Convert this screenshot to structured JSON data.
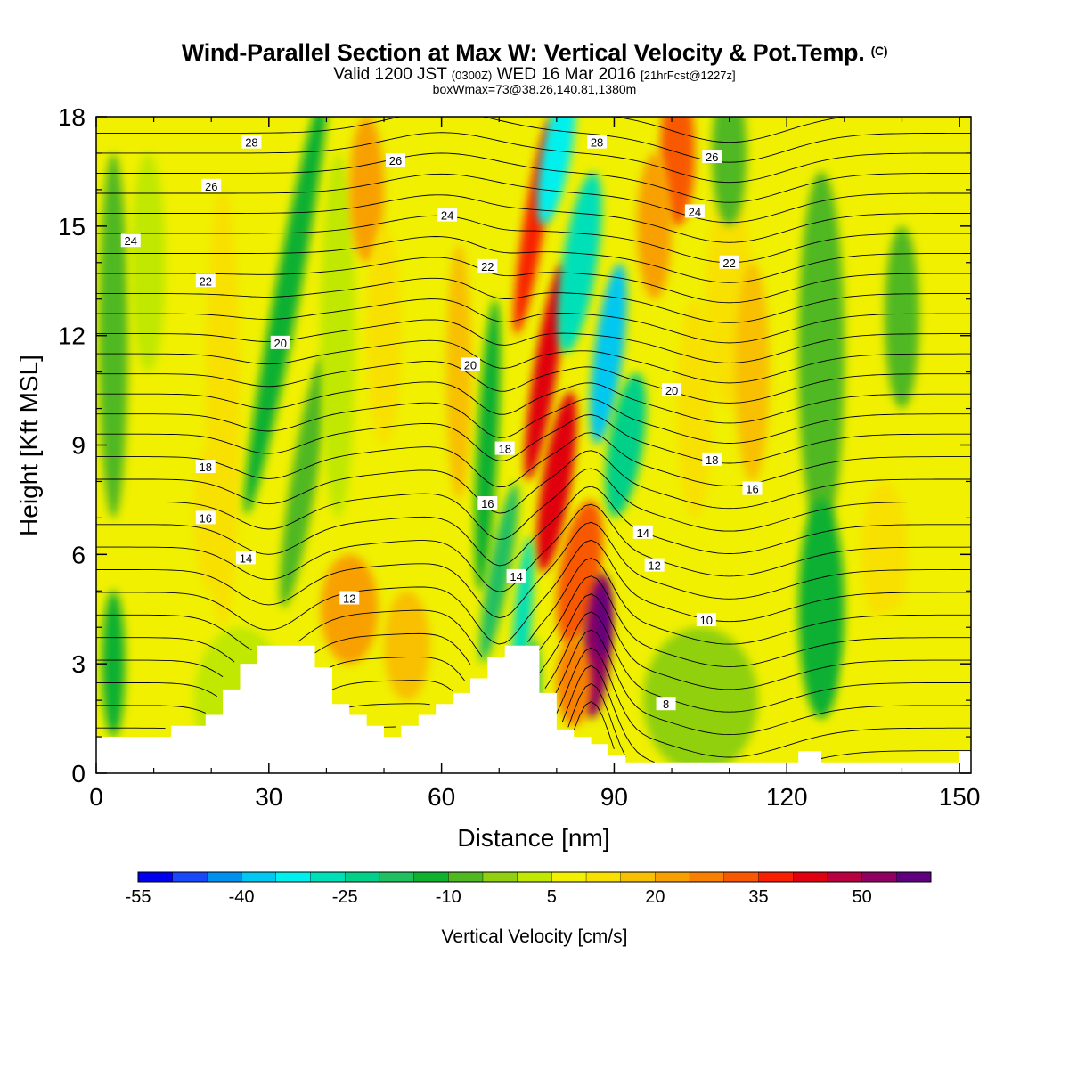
{
  "header": {
    "title_main": "Wind-Parallel Section at Max W: Vertical Velocity & Pot.Temp.",
    "title_mark": "(C)",
    "valid_a": "Valid 1200 JST",
    "valid_b": "(0300Z)",
    "valid_c": "WED 16 Mar 2016",
    "valid_d": "[21hrFcst@1227z]",
    "box_line": "boxWmax=73@38.26,140.81,1380m"
  },
  "chart_data": {
    "type": "heatmap",
    "xlabel": "Distance [nm]",
    "ylabel": "Height [Kft MSL]",
    "xlim": [
      0,
      152
    ],
    "ylim": [
      0,
      18
    ],
    "x_ticks": [
      0,
      30,
      60,
      90,
      120,
      150
    ],
    "y_ticks": [
      0,
      3,
      6,
      9,
      12,
      15,
      18
    ],
    "colorbar": {
      "title": "Vertical Velocity [cm/s]",
      "labels": [
        -55,
        -40,
        -25,
        -10,
        5,
        20,
        35,
        50
      ],
      "colors": [
        "#0000ee",
        "#1848f8",
        "#0090ee",
        "#00c8f0",
        "#00f0ee",
        "#00e0b8",
        "#00d088",
        "#20c060",
        "#10b030",
        "#50b820",
        "#90d010",
        "#c0e800",
        "#f0f000",
        "#f8e000",
        "#f8c000",
        "#f8a000",
        "#f88000",
        "#f85800",
        "#f82000",
        "#e00010",
        "#b80040",
        "#900060",
        "#600080"
      ]
    },
    "field": {
      "variable": "Vertical Velocity [cm/s]",
      "max": 73,
      "features": [
        {
          "name": "strong updraft",
          "value": 50,
          "x": [
            88,
            89
          ],
          "y": [
            2.5,
            5
          ]
        },
        {
          "name": "updraft tongue",
          "value": 35,
          "x": [
            75,
            88
          ],
          "y": [
            1,
            18
          ]
        },
        {
          "name": "downdraft",
          "value": -40,
          "x": [
            78,
            92
          ],
          "y": [
            2,
            18
          ]
        },
        {
          "name": "downdraft",
          "value": -20,
          "x": [
            62,
            73
          ],
          "y": [
            1.5,
            10
          ]
        },
        {
          "name": "downdraft",
          "value": -15,
          "x": [
            30,
            40
          ],
          "y": [
            3,
            18
          ]
        },
        {
          "name": "updraft",
          "value": 20,
          "x": [
            38,
            58
          ],
          "y": [
            1,
            6
          ]
        },
        {
          "name": "downdraft",
          "value": -15,
          "x": [
            118,
            135
          ],
          "y": [
            2,
            15
          ]
        }
      ]
    },
    "isentropes": [
      {
        "theta": 8,
        "label_at": [
          99,
          1.9
        ]
      },
      {
        "theta": 10,
        "label_at": [
          106,
          4.2
        ]
      },
      {
        "theta": 12,
        "label_at": [
          44,
          4.8
        ]
      },
      {
        "theta": 12,
        "label_at": [
          97,
          5.7
        ]
      },
      {
        "theta": 14,
        "label_at": [
          26,
          5.9
        ]
      },
      {
        "theta": 14,
        "label_at": [
          73,
          5.4
        ]
      },
      {
        "theta": 14,
        "label_at": [
          95,
          6.6
        ]
      },
      {
        "theta": 16,
        "label_at": [
          19,
          7.0
        ]
      },
      {
        "theta": 16,
        "label_at": [
          68,
          7.4
        ]
      },
      {
        "theta": 16,
        "label_at": [
          114,
          7.8
        ]
      },
      {
        "theta": 18,
        "label_at": [
          19,
          8.4
        ]
      },
      {
        "theta": 18,
        "label_at": [
          71,
          8.9
        ]
      },
      {
        "theta": 18,
        "label_at": [
          107,
          8.6
        ]
      },
      {
        "theta": 20,
        "label_at": [
          32,
          11.8
        ]
      },
      {
        "theta": 20,
        "label_at": [
          65,
          11.2
        ]
      },
      {
        "theta": 20,
        "label_at": [
          100,
          10.5
        ]
      },
      {
        "theta": 22,
        "label_at": [
          19,
          13.5
        ]
      },
      {
        "theta": 22,
        "label_at": [
          68,
          13.9
        ]
      },
      {
        "theta": 22,
        "label_at": [
          110,
          14.0
        ]
      },
      {
        "theta": 24,
        "label_at": [
          6,
          14.6
        ]
      },
      {
        "theta": 24,
        "label_at": [
          61,
          15.3
        ]
      },
      {
        "theta": 24,
        "label_at": [
          104,
          15.4
        ]
      },
      {
        "theta": 26,
        "label_at": [
          20,
          16.1
        ]
      },
      {
        "theta": 26,
        "label_at": [
          52,
          16.8
        ]
      },
      {
        "theta": 26,
        "label_at": [
          107,
          16.9
        ]
      },
      {
        "theta": 28,
        "label_at": [
          27,
          17.3
        ]
      },
      {
        "theta": 28,
        "label_at": [
          87,
          17.3
        ]
      }
    ],
    "terrain": {
      "x": [
        0,
        10,
        13,
        16,
        19,
        22,
        25,
        28,
        31,
        35,
        38,
        41,
        44,
        47,
        50,
        53,
        56,
        59,
        62,
        65,
        68,
        71,
        74,
        77,
        80,
        83,
        86,
        89,
        92,
        95,
        99,
        102,
        106,
        110,
        114,
        118,
        122,
        126,
        130,
        134,
        138,
        142,
        146,
        150,
        152
      ],
      "y": [
        1.0,
        1.0,
        1.3,
        1.3,
        1.6,
        2.3,
        3.0,
        3.5,
        3.5,
        3.5,
        2.9,
        1.9,
        1.6,
        1.3,
        1.0,
        1.3,
        1.6,
        1.9,
        2.2,
        2.6,
        3.2,
        3.5,
        3.5,
        2.2,
        1.2,
        1.0,
        0.8,
        0.5,
        0.3,
        0.3,
        0.3,
        0.3,
        0.3,
        0.3,
        0.3,
        0.3,
        0.6,
        0.3,
        0.3,
        0.3,
        0.3,
        0.3,
        0.3,
        0.6,
        0.6
      ]
    }
  }
}
